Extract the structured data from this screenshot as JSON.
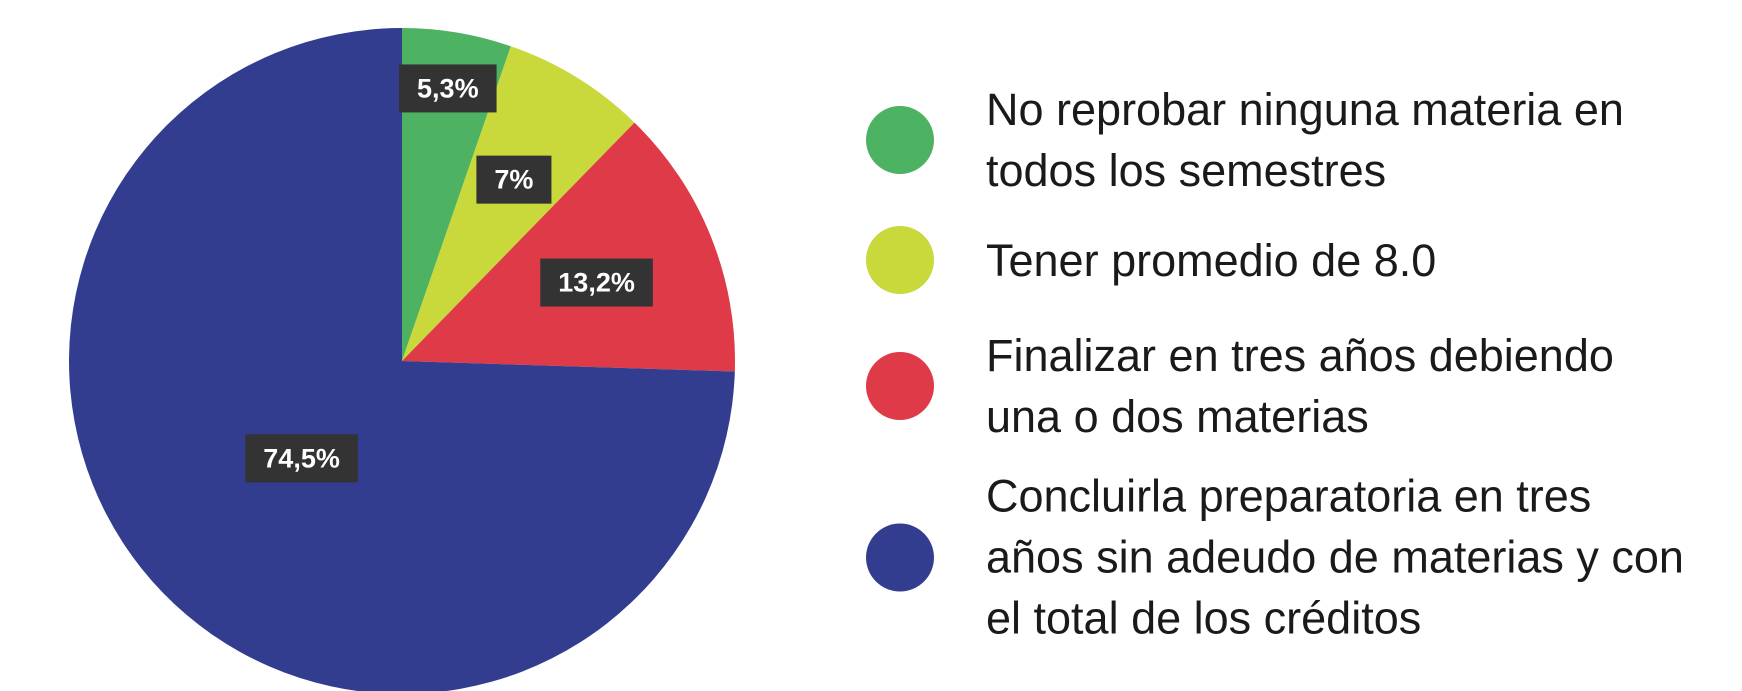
{
  "chart_data": {
    "type": "pie",
    "categories": [
      "No reprobar ninguna materia en todos los semestres",
      "Tener promedio de 8.0",
      "Finalizar en tres años debiendo una o dos materias",
      "Concluirla preparatoria en tres años sin adeudo de materias y con el total de los créditos"
    ],
    "values": [
      5.3,
      7,
      13.2,
      74.5
    ],
    "value_labels": [
      "5,3%",
      "7%",
      "13,2%",
      "74,5%"
    ],
    "colors": [
      "#4db262",
      "#c9d83b",
      "#de3a48",
      "#333d8f"
    ],
    "legend": "right"
  }
}
